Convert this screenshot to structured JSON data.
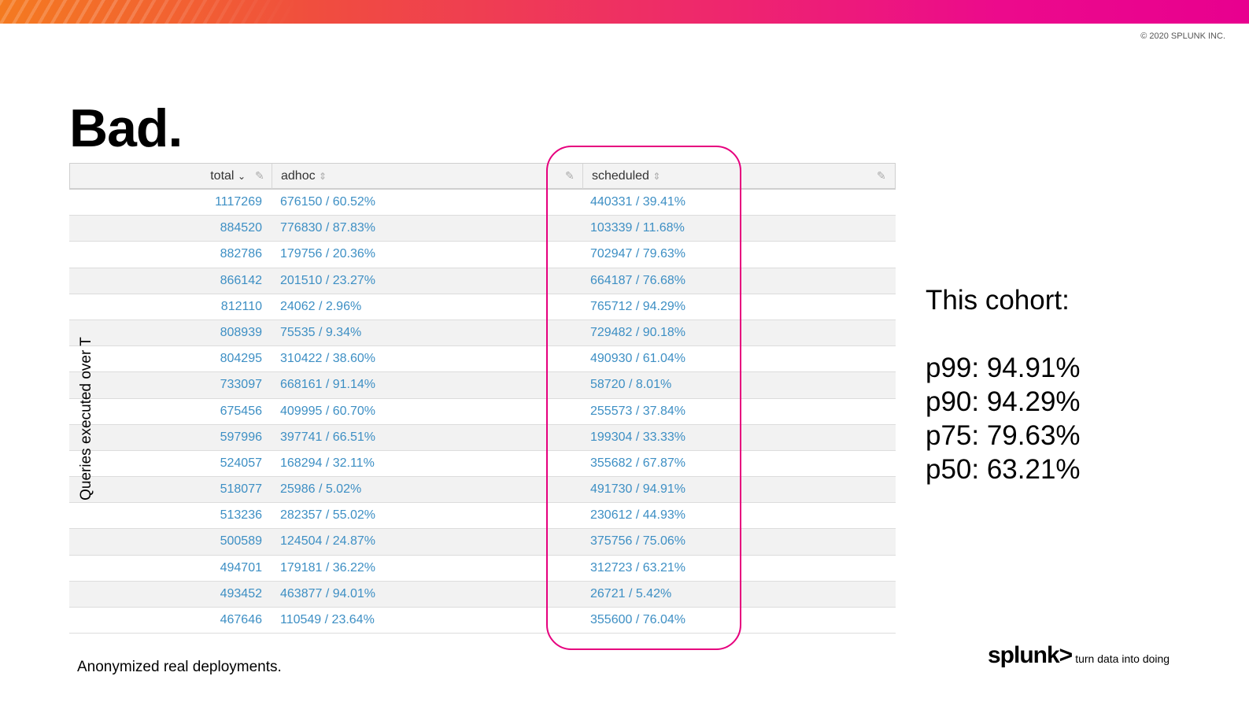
{
  "slide": {
    "copyright": "© 2020 SPLUNK INC.",
    "title": "Bad.",
    "axis_label": "Queries executed over T",
    "footnote": "Anonymized real deployments.",
    "logo": {
      "brand": "splunk>",
      "tagline": "turn data into doing"
    },
    "accent_color": "#e6007e"
  },
  "table": {
    "columns": [
      {
        "label": "total",
        "sort": "desc"
      },
      {
        "label": "adhoc",
        "sort": "none"
      },
      {
        "label": "scheduled",
        "sort": "none"
      }
    ],
    "rows": [
      [
        "1117269",
        "676150 / 60.52%",
        "440331 / 39.41%"
      ],
      [
        "884520",
        "776830 / 87.83%",
        "103339 / 11.68%"
      ],
      [
        "882786",
        "179756 / 20.36%",
        "702947 / 79.63%"
      ],
      [
        "866142",
        "201510 / 23.27%",
        "664187 / 76.68%"
      ],
      [
        "812110",
        "24062 / 2.96%",
        "765712 / 94.29%"
      ],
      [
        "808939",
        "75535 / 9.34%",
        "729482 / 90.18%"
      ],
      [
        "804295",
        "310422 / 38.60%",
        "490930 / 61.04%"
      ],
      [
        "733097",
        "668161 / 91.14%",
        "58720 / 8.01%"
      ],
      [
        "675456",
        "409995 / 60.70%",
        "255573 / 37.84%"
      ],
      [
        "597996",
        "397741 / 66.51%",
        "199304 / 33.33%"
      ],
      [
        "524057",
        "168294 / 32.11%",
        "355682 / 67.87%"
      ],
      [
        "518077",
        "25986 / 5.02%",
        "491730 / 94.91%"
      ],
      [
        "513236",
        "282357 / 55.02%",
        "230612 / 44.93%"
      ],
      [
        "500589",
        "124504 / 24.87%",
        "375756 / 75.06%"
      ],
      [
        "494701",
        "179181 / 36.22%",
        "312723 / 63.21%"
      ],
      [
        "493452",
        "463877 / 94.01%",
        "26721 / 5.42%"
      ],
      [
        "467646",
        "110549 / 23.64%",
        "355600 / 76.04%"
      ]
    ]
  },
  "cohort": {
    "heading": "This cohort:",
    "stats": [
      "p99: 94.91%",
      "p90: 94.29%",
      "p75: 79.63%",
      "p50: 63.21%"
    ]
  }
}
